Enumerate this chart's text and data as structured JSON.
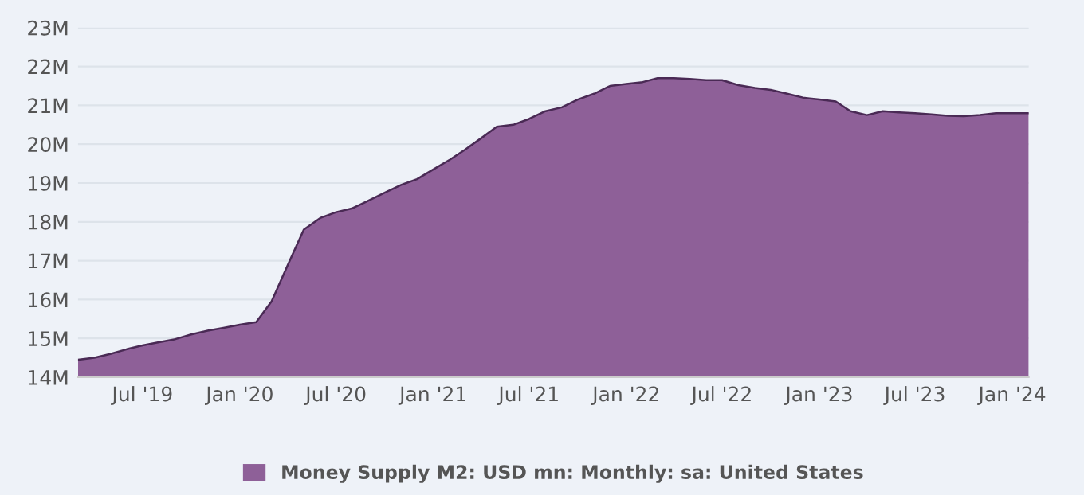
{
  "chart_data": {
    "type": "area",
    "x": [
      "2019-03",
      "2019-04",
      "2019-05",
      "2019-06",
      "2019-07",
      "2019-08",
      "2019-09",
      "2019-10",
      "2019-11",
      "2019-12",
      "2020-01",
      "2020-02",
      "2020-03",
      "2020-04",
      "2020-05",
      "2020-06",
      "2020-07",
      "2020-08",
      "2020-09",
      "2020-10",
      "2020-11",
      "2020-12",
      "2021-01",
      "2021-02",
      "2021-03",
      "2021-04",
      "2021-05",
      "2021-06",
      "2021-07",
      "2021-08",
      "2021-09",
      "2021-10",
      "2021-11",
      "2021-12",
      "2022-01",
      "2022-02",
      "2022-03",
      "2022-04",
      "2022-05",
      "2022-06",
      "2022-07",
      "2022-08",
      "2022-09",
      "2022-10",
      "2022-11",
      "2022-12",
      "2023-01",
      "2023-02",
      "2023-03",
      "2023-04",
      "2023-05",
      "2023-06",
      "2023-07",
      "2023-08",
      "2023-09",
      "2023-10",
      "2023-11",
      "2023-12",
      "2024-01",
      "2024-02"
    ],
    "series": [
      {
        "name": "Money Supply M2: USD mn: Monthly: sa: United States",
        "color": "#8e6098",
        "values": [
          14.45,
          14.5,
          14.6,
          14.72,
          14.82,
          14.9,
          14.98,
          15.1,
          15.2,
          15.27,
          15.35,
          15.42,
          15.95,
          16.9,
          17.8,
          18.1,
          18.25,
          18.35,
          18.55,
          18.75,
          18.95,
          19.1,
          19.35,
          19.6,
          19.85,
          20.15,
          20.45,
          20.5,
          20.65,
          20.85,
          20.95,
          21.15,
          21.3,
          21.5,
          21.55,
          21.6,
          21.7,
          21.7,
          21.68,
          21.65,
          21.65,
          21.52,
          21.45,
          21.4,
          21.3,
          21.2,
          21.15,
          21.1,
          20.85,
          20.75,
          20.85,
          20.82,
          20.8,
          20.77,
          20.73,
          20.72,
          20.75,
          20.8,
          20.8,
          20.8
        ]
      }
    ],
    "xlim": [
      "2019-03",
      "2024-02"
    ],
    "xticks": [
      {
        "value": "2019-07",
        "label": "Jul '19"
      },
      {
        "value": "2020-01",
        "label": "Jan '20"
      },
      {
        "value": "2020-07",
        "label": "Jul '20"
      },
      {
        "value": "2021-01",
        "label": "Jan '21"
      },
      {
        "value": "2021-07",
        "label": "Jul '21"
      },
      {
        "value": "2022-01",
        "label": "Jan '22"
      },
      {
        "value": "2022-07",
        "label": "Jul '22"
      },
      {
        "value": "2023-01",
        "label": "Jan '23"
      },
      {
        "value": "2023-07",
        "label": "Jul '23"
      },
      {
        "value": "2024-01",
        "label": "Jan '24"
      }
    ],
    "ylim": [
      14,
      23
    ],
    "yticks": [
      {
        "value": 14,
        "label": "14M"
      },
      {
        "value": 15,
        "label": "15M"
      },
      {
        "value": 16,
        "label": "16M"
      },
      {
        "value": 17,
        "label": "17M"
      },
      {
        "value": 18,
        "label": "18M"
      },
      {
        "value": 19,
        "label": "19M"
      },
      {
        "value": 20,
        "label": "20M"
      },
      {
        "value": 21,
        "label": "21M"
      },
      {
        "value": 22,
        "label": "22M"
      },
      {
        "value": 23,
        "label": "23M"
      }
    ],
    "grid": "y",
    "legend": "bottom"
  }
}
